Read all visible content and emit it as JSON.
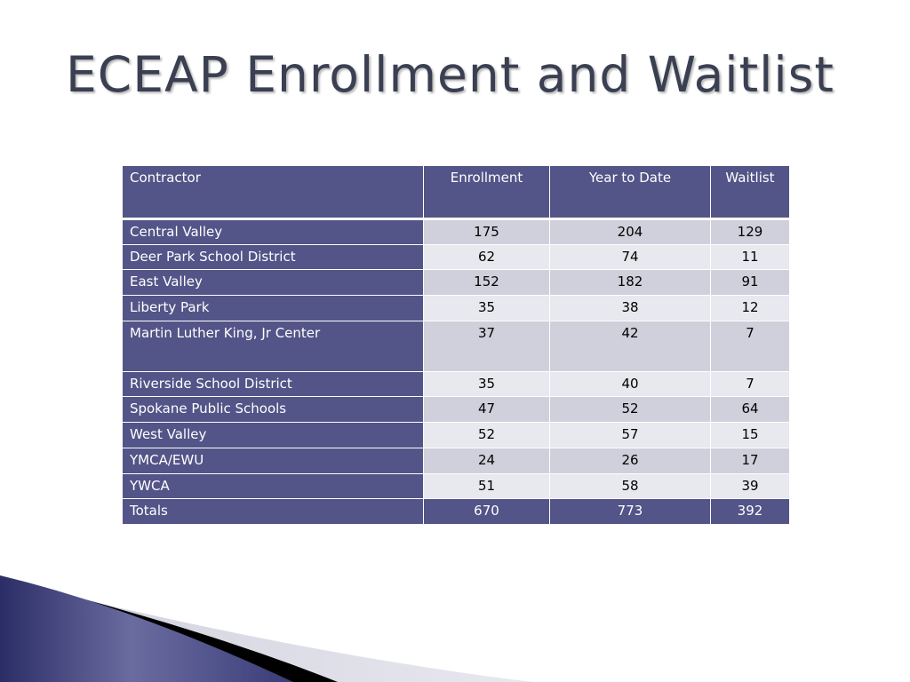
{
  "title": "ECEAP Enrollment and Waitlist",
  "table": {
    "headers": [
      "Contractor",
      "Enrollment",
      "Year to Date",
      "Waitlist"
    ],
    "rows": [
      {
        "contractor": "Central Valley",
        "enrollment": "175",
        "ytd": "204",
        "waitlist": "129"
      },
      {
        "contractor": "Deer Park School District",
        "enrollment": "62",
        "ytd": "74",
        "waitlist": "11"
      },
      {
        "contractor": "East Valley",
        "enrollment": "152",
        "ytd": "182",
        "waitlist": "91"
      },
      {
        "contractor": "Liberty Park",
        "enrollment": "35",
        "ytd": "38",
        "waitlist": "12"
      },
      {
        "contractor": "Martin Luther King, Jr Center",
        "enrollment": "37",
        "ytd": "42",
        "waitlist": "7"
      },
      {
        "contractor": "Riverside School District",
        "enrollment": "35",
        "ytd": "40",
        "waitlist": "7"
      },
      {
        "contractor": "Spokane Public Schools",
        "enrollment": "47",
        "ytd": "52",
        "waitlist": "64"
      },
      {
        "contractor": "West Valley",
        "enrollment": "52",
        "ytd": "57",
        "waitlist": "15"
      },
      {
        "contractor": "YMCA/EWU",
        "enrollment": "24",
        "ytd": "26",
        "waitlist": "17"
      },
      {
        "contractor": "YWCA",
        "enrollment": "51",
        "ytd": "58",
        "waitlist": "39"
      }
    ],
    "totals": {
      "label": "Totals",
      "enrollment": "670",
      "ytd": "773",
      "waitlist": "392"
    }
  },
  "colors": {
    "header_bg": "#535487",
    "row_dark": "#d0d0dc",
    "row_light": "#e8e8ef",
    "title": "#3a3f52"
  }
}
